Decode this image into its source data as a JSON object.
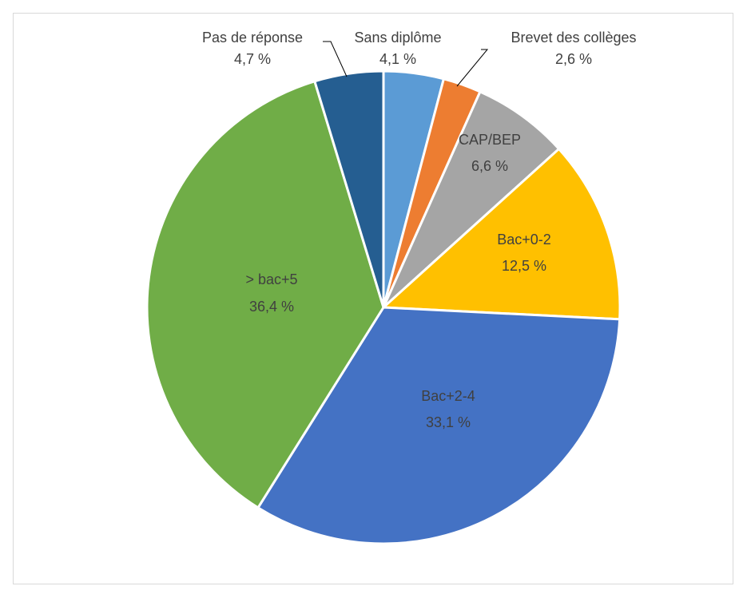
{
  "chart_data": {
    "type": "pie",
    "title": "",
    "unit": "%",
    "slices": [
      {
        "label": "Sans diplôme",
        "value": 4.1,
        "value_text": "4,1 %",
        "color": "#5b9bd5"
      },
      {
        "label": "Brevet des collèges",
        "value": 2.6,
        "value_text": "2,6 %",
        "color": "#ed7d31"
      },
      {
        "label": "CAP/BEP",
        "value": 6.6,
        "value_text": "6,6 %",
        "color": "#a5a5a5"
      },
      {
        "label": "Bac+0-2",
        "value": 12.5,
        "value_text": "12,5 %",
        "color": "#ffc000"
      },
      {
        "label": "Bac+2-4",
        "value": 33.1,
        "value_text": "33,1 %",
        "color": "#4472c4"
      },
      {
        "label": "> bac+5",
        "value": 36.4,
        "value_text": "36,4 %",
        "color": "#70ad47"
      },
      {
        "label": "Pas de réponse",
        "value": 4.7,
        "value_text": "4,7 %",
        "color": "#255e91"
      }
    ],
    "start_angle_deg": 0,
    "direction": "clockwise",
    "legend": "none",
    "data_labels": "category name and value"
  }
}
